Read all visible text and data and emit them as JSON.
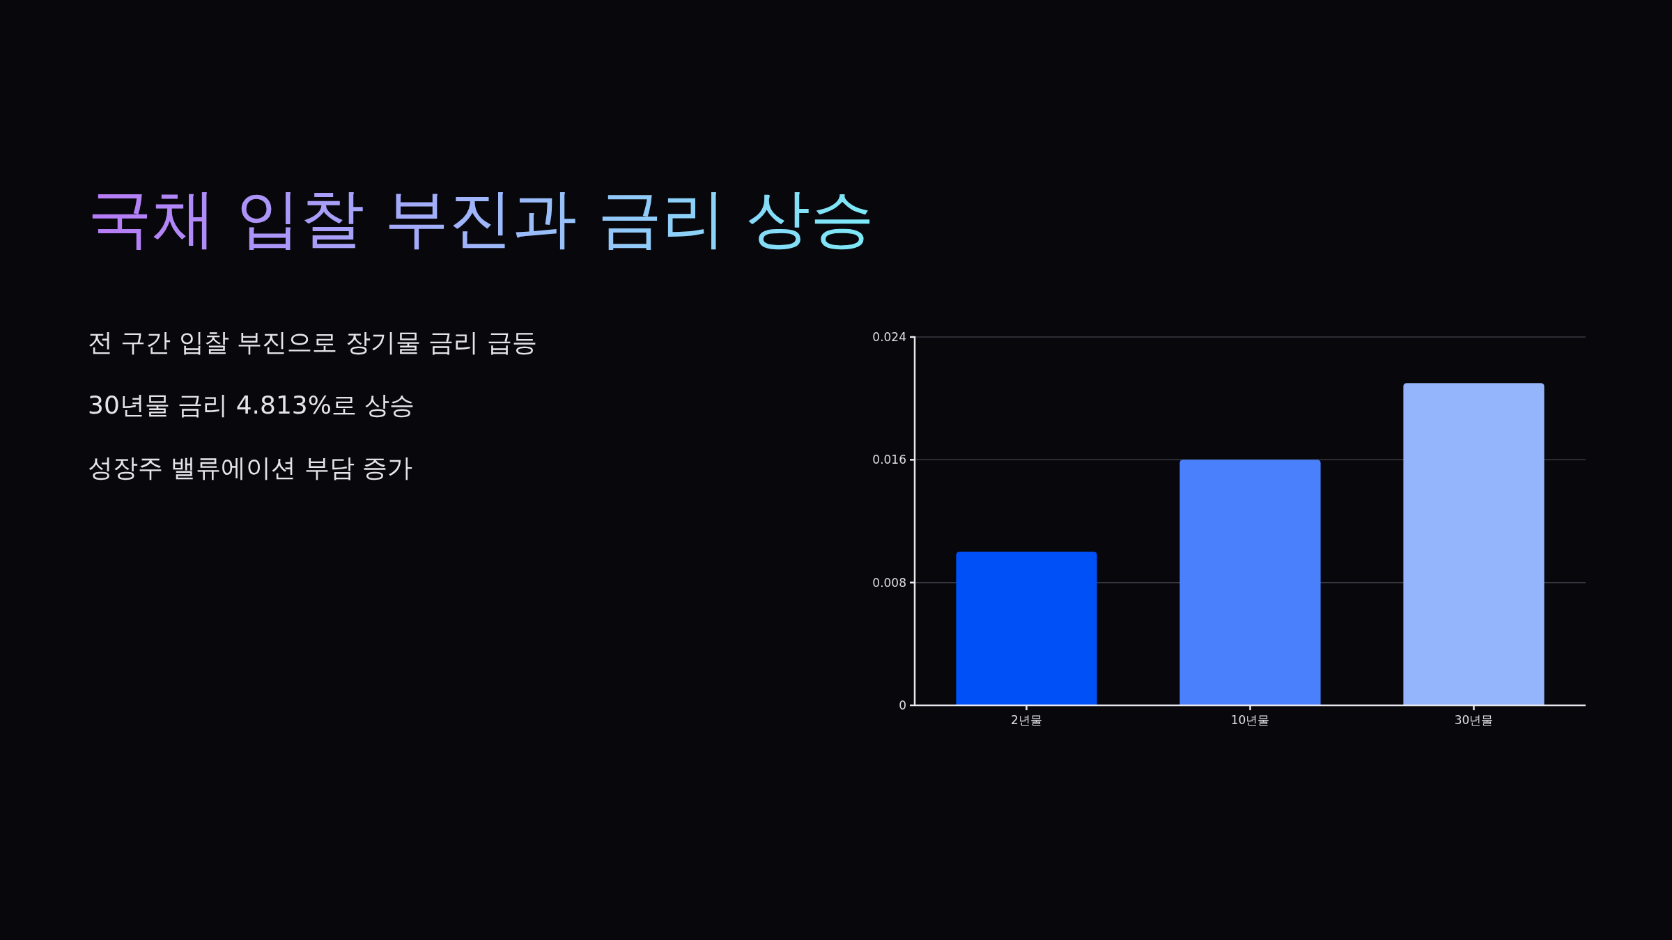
{
  "chart_data": {
    "type": "bar",
    "title": "국채 입찰 부진과 금리 상승",
    "annotations": [
      "전 구간 입찰 부진으로 장기물 금리 급등",
      "30년물 금리 4.813%로 상승",
      "성장주 밸류에이션 부담 증가"
    ],
    "categories": [
      "2년물",
      "10년물",
      "30년물"
    ],
    "values": [
      0.01,
      0.016,
      0.021
    ],
    "colors": [
      "#0050f8",
      "#4a80fc",
      "#94b4fc"
    ],
    "ylim": [
      0,
      0.024
    ],
    "yticks": [
      0,
      0.008,
      0.016,
      0.024
    ],
    "grid": "y"
  }
}
